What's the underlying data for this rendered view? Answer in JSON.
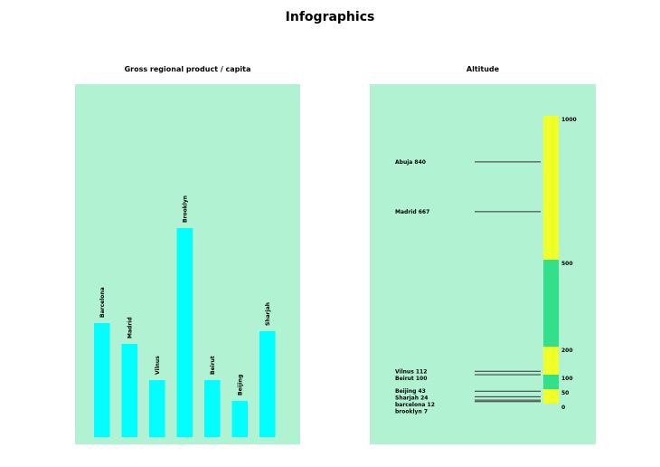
{
  "title": "Infographics",
  "chart_data": [
    {
      "type": "bar",
      "title": "Gross regional product / capita",
      "categories": [
        "Barcelona",
        "Madrid",
        "Vilnus",
        "Brooklyn",
        "Beirut",
        "Beijing",
        "Sharjah"
      ],
      "values": [
        126,
        103,
        63,
        231,
        63,
        40,
        117
      ],
      "value_note": "relative bar heights; no axis shown",
      "color": "#00ffff",
      "background": "#b0f2d1"
    },
    {
      "type": "bar",
      "title": "Altitude",
      "scale_ticks": [
        1000,
        500,
        200,
        100,
        50,
        0
      ],
      "bands": [
        {
          "from": 500,
          "to": 1000,
          "color": "#f0ff28"
        },
        {
          "from": 200,
          "to": 500,
          "color": "#33e08a"
        },
        {
          "from": 100,
          "to": 200,
          "color": "#f0ff28"
        },
        {
          "from": 50,
          "to": 100,
          "color": "#33e08a"
        },
        {
          "from": 0,
          "to": 50,
          "color": "#f0ff28"
        }
      ],
      "points": [
        {
          "label": "Abuja 840",
          "value": 840
        },
        {
          "label": "Madrid 667",
          "value": 667
        },
        {
          "label": "Vilnus 112",
          "value": 112
        },
        {
          "label": "Beirut 100",
          "value": 100
        },
        {
          "label": "Beijing 43",
          "value": 43
        },
        {
          "label": "Sharjah 24",
          "value": 24
        },
        {
          "label": "barcelona 12",
          "value": 12
        },
        {
          "label": "brooklyn 7",
          "value": 7
        }
      ],
      "background": "#b0f2d1"
    }
  ]
}
